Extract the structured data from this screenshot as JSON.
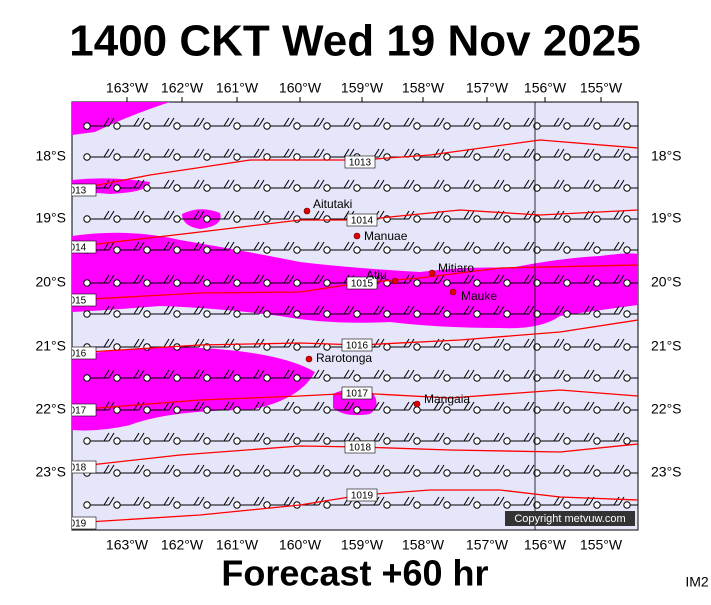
{
  "header": {
    "title": "1400 CKT Wed 19 Nov 2025"
  },
  "footer": {
    "caption": "Forecast +60 hr",
    "code": "IM2"
  },
  "map": {
    "longitude_labels": [
      "163°W",
      "162°W",
      "161°W",
      "160°W",
      "159°W",
      "158°W",
      "157°W",
      "156°W",
      "155°W"
    ],
    "latitude_labels": [
      "18°S",
      "19°S",
      "20°S",
      "21°S",
      "22°S",
      "23°S"
    ],
    "places": [
      "Aitutaki",
      "Manuae",
      "Atiu",
      "Mitiaro",
      "Mauke",
      "Rarotonga",
      "Mangaia"
    ],
    "isobars": [
      "1013",
      "1014",
      "1015",
      "1016",
      "1017",
      "1018",
      "1019"
    ],
    "copyright": "Copyright metvuw.com"
  }
}
